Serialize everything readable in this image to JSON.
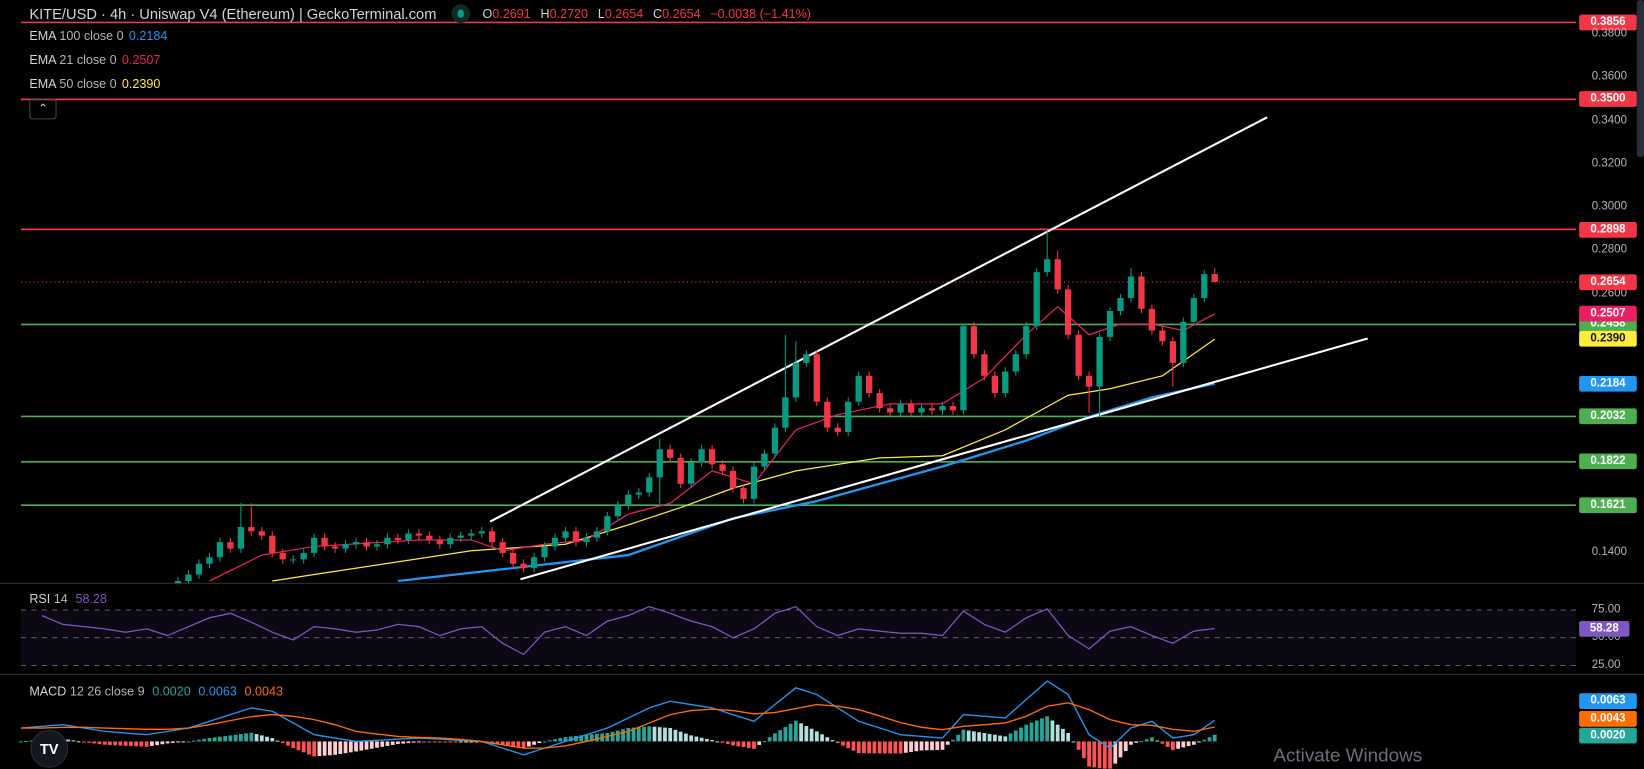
{
  "header": {
    "title": "KITE/USD · 4h · Uniswap V4 (Ethereum) | GeckoTerminal.com",
    "status_icon": "market-open-dot-icon",
    "ohlc": {
      "o_label": "O",
      "o": "0.2691",
      "h_label": "H",
      "h": "0.2720",
      "l_label": "L",
      "l": "0.2654",
      "c_label": "C",
      "c": "0.2654",
      "change": "−0.0038 (−1.41%)"
    }
  },
  "legend": [
    {
      "name": "EMA",
      "params": "100 close 0",
      "value": "0.2184",
      "color": "#2196f3"
    },
    {
      "name": "EMA",
      "params": "21 close 0",
      "value": "0.2507",
      "color": "#e91e63"
    },
    {
      "name": "EMA",
      "params": "50 close 0",
      "value": "0.2390",
      "color": "#ffeb3b"
    }
  ],
  "collapse_icon": "chevron-up-icon",
  "colors": {
    "up": "#089981",
    "down": "#f23645",
    "resistance": "#f23645",
    "support": "#4caf50",
    "trendline": "#ffffff",
    "rsi": "#7e57c2",
    "macd": "#2196f3",
    "signal": "#ff6d00",
    "hist_up": "#26a69a",
    "hist_up_light": "#b2dfdb",
    "hist_down": "#ff5252",
    "hist_down_light": "#ffcdd2"
  },
  "chart_data": [
    {
      "type": "candlestick",
      "pane": "price",
      "ylim": [
        0.13,
        0.39
      ],
      "y_ticks": [
        "0.3800",
        "0.3600",
        "0.3400",
        "0.3200",
        "0.3000",
        "0.2800",
        "0.2600",
        "0.1400"
      ],
      "close": [
        0.127,
        0.13,
        0.135,
        0.138,
        0.145,
        0.142,
        0.152,
        0.15,
        0.148,
        0.14,
        0.137,
        0.137,
        0.14,
        0.147,
        0.143,
        0.142,
        0.144,
        0.145,
        0.143,
        0.144,
        0.147,
        0.146,
        0.149,
        0.148,
        0.146,
        0.144,
        0.147,
        0.148,
        0.149,
        0.15,
        0.145,
        0.14,
        0.135,
        0.133,
        0.138,
        0.143,
        0.147,
        0.15,
        0.145,
        0.147,
        0.15,
        0.157,
        0.162,
        0.167,
        0.168,
        0.175,
        0.188,
        0.184,
        0.172,
        0.182,
        0.188,
        0.181,
        0.178,
        0.17,
        0.165,
        0.18,
        0.186,
        0.198,
        0.212,
        0.228,
        0.232,
        0.21,
        0.198,
        0.196,
        0.21,
        0.222,
        0.214,
        0.207,
        0.205,
        0.209,
        0.205,
        0.207,
        0.206,
        0.208,
        0.206,
        0.245,
        0.232,
        0.222,
        0.214,
        0.224,
        0.232,
        0.245,
        0.27,
        0.276,
        0.262,
        0.241,
        0.222,
        0.217,
        0.24,
        0.252,
        0.258,
        0.268,
        0.253,
        0.243,
        0.238,
        0.228,
        0.247,
        0.258,
        0.2691,
        0.2654
      ],
      "high_wicks": {
        "6": 0.163,
        "7": 0.163,
        "46": 0.193,
        "58": 0.241,
        "59": 0.238,
        "75": 0.246,
        "83": 0.289,
        "84": 0.28,
        "91": 0.272,
        "99": 0.272
      },
      "low_wicks": {
        "46": 0.162,
        "87": 0.205,
        "88": 0.203,
        "95": 0.217
      },
      "last": {
        "open": 0.2691,
        "high": 0.272,
        "low": 0.2654,
        "close": 0.2654
      },
      "ema": [
        {
          "label": "EMA 100",
          "color": "#2196f3",
          "points": [
            [
              21,
              0.127
            ],
            [
              43,
              0.139
            ],
            [
              53,
              0.156
            ],
            [
              61,
              0.164
            ],
            [
              73,
              0.18
            ],
            [
              81,
              0.192
            ],
            [
              87,
              0.203
            ],
            [
              93,
              0.212
            ],
            [
              99,
              0.2184
            ]
          ]
        },
        {
          "label": "EMA 50",
          "color": "#ffeb3b",
          "points": [
            [
              9,
              0.127
            ],
            [
              13,
              0.13
            ],
            [
              28,
              0.141
            ],
            [
              37,
              0.144
            ],
            [
              43,
              0.153
            ],
            [
              48,
              0.161
            ],
            [
              53,
              0.17
            ],
            [
              59,
              0.178
            ],
            [
              67,
              0.184
            ],
            [
              73,
              0.185
            ],
            [
              79,
              0.197
            ],
            [
              85,
              0.213
            ],
            [
              89,
              0.216
            ],
            [
              94,
              0.222
            ],
            [
              99,
              0.239
            ]
          ]
        },
        {
          "label": "EMA 21",
          "color": "#e91e63",
          "points": [
            [
              3,
              0.127
            ],
            [
              8,
              0.139
            ],
            [
              13,
              0.143
            ],
            [
              23,
              0.146
            ],
            [
              28,
              0.146
            ],
            [
              31,
              0.141
            ],
            [
              35,
              0.144
            ],
            [
              39,
              0.146
            ],
            [
              43,
              0.158
            ],
            [
              47,
              0.163
            ],
            [
              51,
              0.178
            ],
            [
              55,
              0.172
            ],
            [
              59,
              0.197
            ],
            [
              63,
              0.204
            ],
            [
              68,
              0.209
            ],
            [
              73,
              0.209
            ],
            [
              77,
              0.221
            ],
            [
              81,
              0.241
            ],
            [
              84,
              0.254
            ],
            [
              87,
              0.241
            ],
            [
              90,
              0.246
            ],
            [
              93,
              0.246
            ],
            [
              96,
              0.243
            ],
            [
              99,
              0.2507
            ]
          ]
        }
      ],
      "trendlines": [
        {
          "from": [
            29.8,
            0.1545
          ],
          "to": [
            104,
            0.3417
          ]
        },
        {
          "from": [
            32.7,
            0.1278
          ],
          "to": [
            113.6,
            0.2393
          ]
        }
      ],
      "horizontal_levels": [
        {
          "value": 0.3856,
          "label": "0.3856",
          "kind": "resistance"
        },
        {
          "value": 0.35,
          "label": "0.3500",
          "kind": "resistance"
        },
        {
          "value": 0.2898,
          "label": "0.2898",
          "kind": "resistance"
        },
        {
          "value": 0.2458,
          "label": "0.2458",
          "kind": "support"
        },
        {
          "value": 0.2032,
          "label": "0.2032",
          "kind": "support"
        },
        {
          "value": 0.1822,
          "label": "0.1822",
          "kind": "support"
        },
        {
          "value": 0.1621,
          "label": "0.1621",
          "kind": "support"
        }
      ],
      "price_badges": [
        {
          "value": 0.2654,
          "label": "0.2654",
          "bg": "#f23645",
          "fg": "#ffffff"
        },
        {
          "value": 0.2507,
          "label": "0.2507",
          "bg": "#e91e63",
          "fg": "#ffffff"
        },
        {
          "value": 0.239,
          "label": "0.2390",
          "bg": "#ffeb3b",
          "fg": "#131722"
        },
        {
          "value": 0.2184,
          "label": "0.2184",
          "bg": "#2196f3",
          "fg": "#ffffff"
        }
      ]
    },
    {
      "type": "line",
      "pane": "rsi",
      "label": "RSI",
      "params": "14",
      "value_label": "58.28",
      "ylim": [
        0,
        100
      ],
      "y_ticks": [
        "75.00",
        "50.00",
        "25.00"
      ],
      "bands": [
        75,
        50,
        25
      ],
      "values": [
        70,
        62,
        60,
        58,
        55,
        58,
        52,
        60,
        68,
        72,
        64,
        55,
        48,
        60,
        58,
        55,
        57,
        62,
        60,
        52,
        58,
        60,
        45,
        35,
        55,
        60,
        52,
        65,
        70,
        78,
        72,
        65,
        60,
        50,
        58,
        72,
        78,
        60,
        52,
        58,
        56,
        54,
        54,
        52,
        74,
        62,
        55,
        68,
        76,
        52,
        40,
        56,
        60,
        52,
        45,
        56,
        58.28
      ]
    },
    {
      "type": "line",
      "pane": "macd",
      "label": "MACD",
      "params": "12 26 close 9",
      "values_labels": {
        "histogram": "0.0020",
        "macd": "0.0063",
        "signal": "0.0043"
      },
      "macd": [
        0.004,
        0.0045,
        0.005,
        0.004,
        0.003,
        0.0025,
        0.002,
        0.003,
        0.004,
        0.006,
        0.008,
        0.01,
        0.009,
        0.0055,
        0.002,
        0.001,
        0.0,
        0.0003,
        0.0007,
        0.001,
        0.0007,
        0.0003,
        0.0,
        -0.002,
        -0.004,
        -0.002,
        0.0,
        0.002,
        0.004,
        0.007,
        0.01,
        0.012,
        0.011,
        0.01,
        0.008,
        0.006,
        0.011,
        0.016,
        0.014,
        0.01,
        0.006,
        0.004,
        0.002,
        0.0015,
        0.001,
        0.008,
        0.0075,
        0.007,
        0.0125,
        0.018,
        0.014,
        0.002,
        -0.002,
        0.004,
        0.006,
        0.001,
        0.002,
        0.0063
      ],
      "signal": [
        0.004,
        0.004,
        0.0042,
        0.0042,
        0.004,
        0.0038,
        0.0036,
        0.0036,
        0.004,
        0.005,
        0.0062,
        0.0074,
        0.008,
        0.0075,
        0.0065,
        0.005,
        0.003,
        0.0022,
        0.0015,
        0.0012,
        0.001,
        0.0006,
        0.0,
        -0.001,
        -0.002,
        -0.002,
        -0.0013,
        0.0,
        0.0015,
        0.003,
        0.0055,
        0.008,
        0.0092,
        0.0096,
        0.0092,
        0.0082,
        0.0086,
        0.0098,
        0.011,
        0.0105,
        0.0095,
        0.0076,
        0.0056,
        0.0042,
        0.0035,
        0.0045,
        0.005,
        0.0055,
        0.0075,
        0.0105,
        0.0115,
        0.0095,
        0.0065,
        0.005,
        0.0048,
        0.0036,
        0.003,
        0.0043
      ],
      "badges": [
        {
          "label": "0.0063",
          "bg": "#2196f3"
        },
        {
          "label": "0.0043",
          "bg": "#ff6d00"
        },
        {
          "label": "0.0020",
          "bg": "#26a69a"
        }
      ]
    }
  ],
  "logo_text": "TV",
  "watermark": "Activate Windows"
}
